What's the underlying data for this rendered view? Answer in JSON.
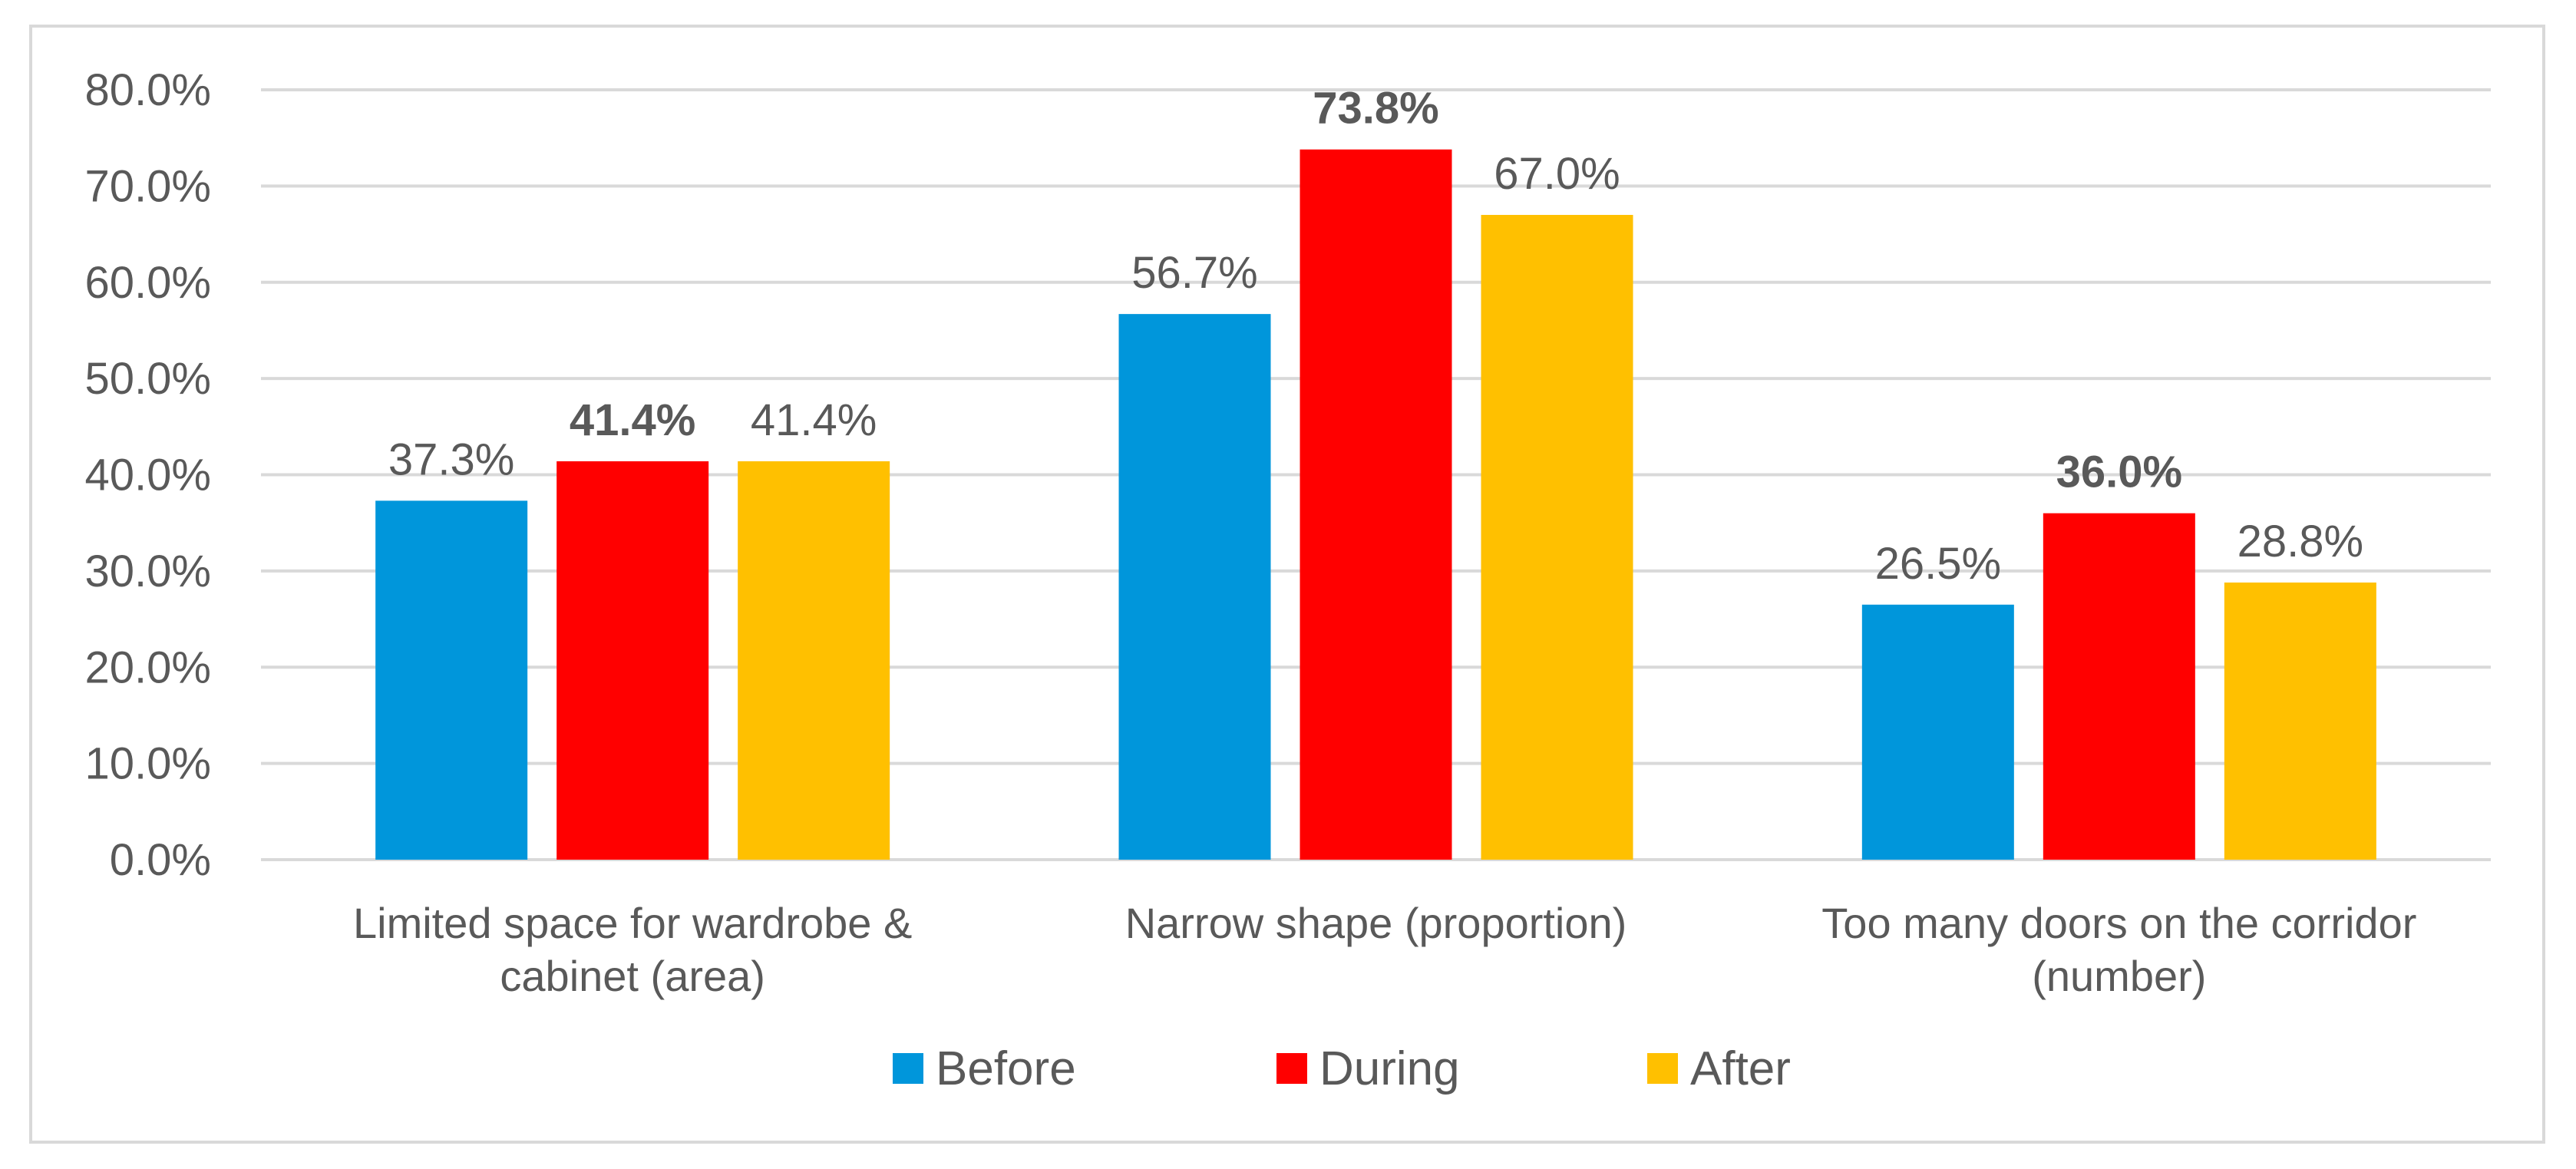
{
  "chart_data": {
    "type": "bar",
    "categories": [
      [
        "Limited space for wardrobe &",
        "cabinet (area)"
      ],
      [
        "Narrow shape (proportion)"
      ],
      [
        "Too many doors on the corridor",
        "(number)"
      ]
    ],
    "series": [
      {
        "name": "Before",
        "color": "#0096db",
        "values": [
          37.3,
          56.7,
          26.5
        ],
        "labels": [
          "37.3%",
          "56.7%",
          "26.5%"
        ]
      },
      {
        "name": "During",
        "color": "#ff0000",
        "values": [
          41.4,
          73.8,
          36.0
        ],
        "labels": [
          "41.4%",
          "73.8%",
          "36.0%"
        ],
        "bold_labels": true
      },
      {
        "name": "After",
        "color": "#ffc000",
        "values": [
          41.4,
          67.0,
          28.8
        ],
        "labels": [
          "41.4%",
          "67.0%",
          "28.8%"
        ]
      }
    ],
    "y_ticks": [
      "0.0%",
      "10.0%",
      "20.0%",
      "30.0%",
      "40.0%",
      "50.0%",
      "60.0%",
      "70.0%",
      "80.0%"
    ],
    "ylim": [
      0,
      80
    ],
    "grid": true,
    "legend_position": "bottom",
    "title": "",
    "xlabel": "",
    "ylabel": ""
  }
}
